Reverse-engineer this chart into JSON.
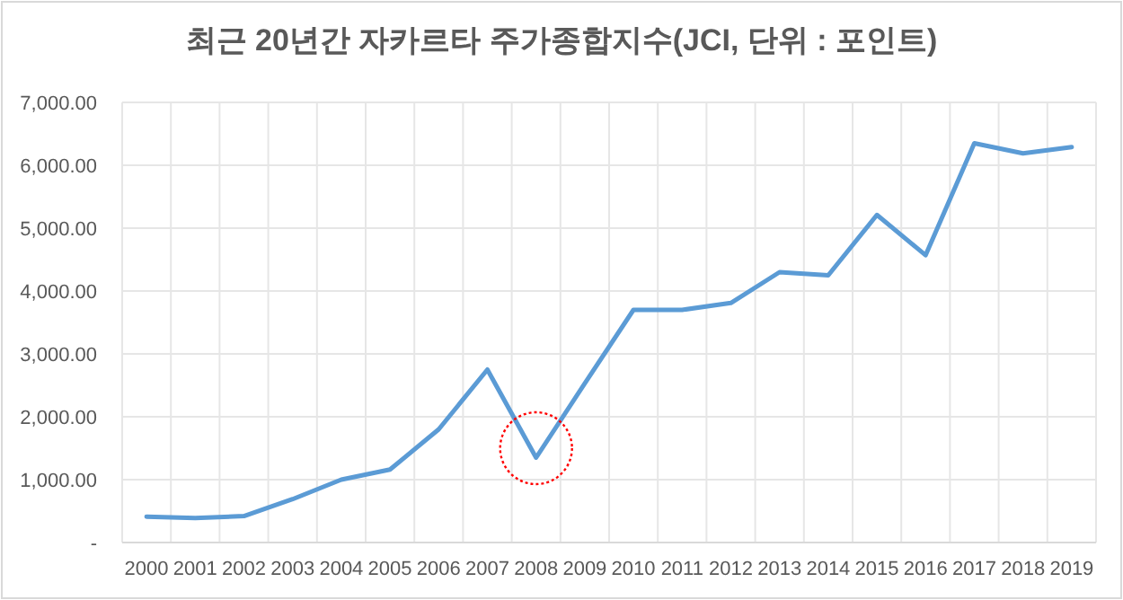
{
  "chart_data": {
    "type": "line",
    "title": "최근 20년간 자카르타 주가종합지수(JCI, 단위 : 포인트)",
    "categories": [
      "2000",
      "2001",
      "2002",
      "2003",
      "2004",
      "2005",
      "2006",
      "2007",
      "2008",
      "2009",
      "2010",
      "2011",
      "2012",
      "2013",
      "2014",
      "2015",
      "2016",
      "2017",
      "2018",
      "2019"
    ],
    "series": [
      {
        "color": "#5b9bd5",
        "values": [
          410,
          390,
          420,
          690,
          1000,
          1160,
          1800,
          2750,
          1350,
          2530,
          3700,
          3700,
          3810,
          4300,
          4250,
          5210,
          4570,
          6350,
          6190,
          6290
        ]
      }
    ],
    "ylim": [
      0,
      7000
    ],
    "yticks": [
      {
        "value": 0,
        "label": "-"
      },
      {
        "value": 1000,
        "label": "1,000.00"
      },
      {
        "value": 2000,
        "label": "2,000.00"
      },
      {
        "value": 3000,
        "label": "3,000.00"
      },
      {
        "value": 4000,
        "label": "4,000.00"
      },
      {
        "value": 5000,
        "label": "5,000.00"
      },
      {
        "value": 6000,
        "label": "6,000.00"
      },
      {
        "value": 7000,
        "label": "7,000.00"
      }
    ],
    "grid": true,
    "marker": "none",
    "line_style": "solid"
  }
}
